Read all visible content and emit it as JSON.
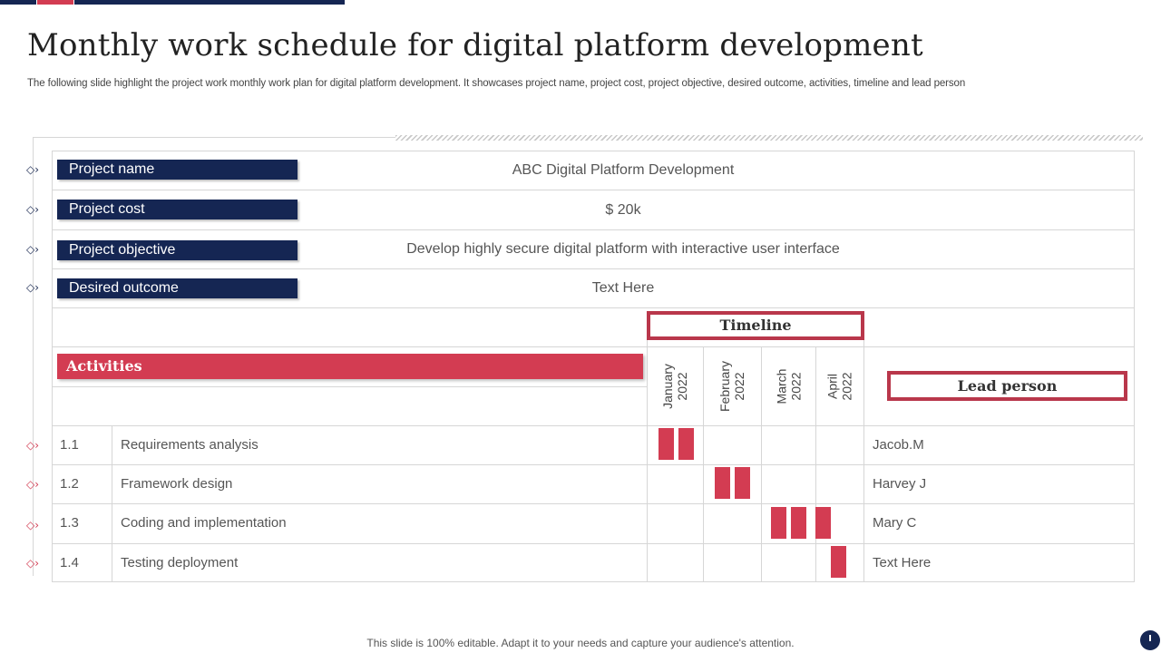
{
  "header": {
    "title": "Monthly work schedule for digital platform development",
    "subtitle": "The following slide highlight the project work monthly work plan for digital platform development. It showcases project name, project cost, project objective, desired outcome, activities, timeline and lead person"
  },
  "info_rows": [
    {
      "label": "Project name",
      "value": "ABC Digital Platform Development"
    },
    {
      "label": "Project cost",
      "value": "$ 20k"
    },
    {
      "label": "Project objective",
      "value": "Develop highly secure digital platform with interactive user interface"
    },
    {
      "label": "Desired outcome",
      "value": "Text Here"
    }
  ],
  "schedule": {
    "timeline_label": "Timeline",
    "activities_label": "Activities",
    "lead_label": "Lead person",
    "months": [
      "January\n2022",
      "February\n2022",
      "March\n2022",
      "April\n2022"
    ],
    "tasks": [
      {
        "id": "1.1",
        "name": "Requirements analysis",
        "lead": "Jacob.M"
      },
      {
        "id": "1.2",
        "name": "Framework design",
        "lead": "Harvey J"
      },
      {
        "id": "1.3",
        "name": "Coding and implementation",
        "lead": "Mary C"
      },
      {
        "id": "1.4",
        "name": "Testing deployment",
        "lead": "Text Here"
      }
    ]
  },
  "footer": "This slide is 100% editable. Adapt it to your needs and capture your audience's attention.",
  "icons": {
    "marker": "diamond-arrow-icon",
    "corner": "clock-icon"
  },
  "colors": {
    "navy": "#152653",
    "red": "#d33c52",
    "border_red": "#b9374b"
  }
}
